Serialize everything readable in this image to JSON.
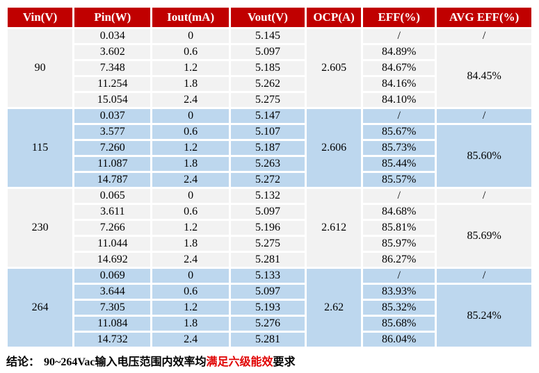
{
  "header": {
    "columns": [
      "Vin(V)",
      "Pin(W)",
      "Iout(mA)",
      "Vout(V)",
      "OCP(A)",
      "EFF(%)",
      "AVG EFF(%)"
    ]
  },
  "groups": [
    {
      "vin": "90",
      "ocp": "2.605",
      "avg_eff_first": "/",
      "avg_eff": "84.45%",
      "rows": [
        {
          "pin": "0.034",
          "iout": "0",
          "vout": "5.145",
          "eff": "/"
        },
        {
          "pin": "3.602",
          "iout": "0.6",
          "vout": "5.097",
          "eff": "84.89%"
        },
        {
          "pin": "7.348",
          "iout": "1.2",
          "vout": "5.185",
          "eff": "84.67%"
        },
        {
          "pin": "11.254",
          "iout": "1.8",
          "vout": "5.262",
          "eff": "84.16%"
        },
        {
          "pin": "15.054",
          "iout": "2.4",
          "vout": "5.275",
          "eff": "84.10%"
        }
      ]
    },
    {
      "vin": "115",
      "ocp": "2.606",
      "avg_eff_first": "/",
      "avg_eff": "85.60%",
      "rows": [
        {
          "pin": "0.037",
          "iout": "0",
          "vout": "5.147",
          "eff": "/"
        },
        {
          "pin": "3.577",
          "iout": "0.6",
          "vout": "5.107",
          "eff": "85.67%"
        },
        {
          "pin": "7.260",
          "iout": "1.2",
          "vout": "5.187",
          "eff": "85.73%"
        },
        {
          "pin": "11.087",
          "iout": "1.8",
          "vout": "5.263",
          "eff": "85.44%"
        },
        {
          "pin": "14.787",
          "iout": "2.4",
          "vout": "5.272",
          "eff": "85.57%"
        }
      ]
    },
    {
      "vin": "230",
      "ocp": "2.612",
      "avg_eff_first": "/",
      "avg_eff": "85.69%",
      "rows": [
        {
          "pin": "0.065",
          "iout": "0",
          "vout": "5.132",
          "eff": "/"
        },
        {
          "pin": "3.611",
          "iout": "0.6",
          "vout": "5.097",
          "eff": "84.68%"
        },
        {
          "pin": "7.266",
          "iout": "1.2",
          "vout": "5.196",
          "eff": "85.81%"
        },
        {
          "pin": "11.044",
          "iout": "1.8",
          "vout": "5.275",
          "eff": "85.97%"
        },
        {
          "pin": "14.692",
          "iout": "2.4",
          "vout": "5.281",
          "eff": "86.27%"
        }
      ]
    },
    {
      "vin": "264",
      "ocp": "2.62",
      "avg_eff_first": "/",
      "avg_eff": "85.24%",
      "rows": [
        {
          "pin": "0.069",
          "iout": "0",
          "vout": "5.133",
          "eff": "/"
        },
        {
          "pin": "3.644",
          "iout": "0.6",
          "vout": "5.097",
          "eff": "83.93%"
        },
        {
          "pin": "7.305",
          "iout": "1.2",
          "vout": "5.193",
          "eff": "85.32%"
        },
        {
          "pin": "11.084",
          "iout": "1.8",
          "vout": "5.276",
          "eff": "85.68%"
        },
        {
          "pin": "14.732",
          "iout": "2.4",
          "vout": "5.281",
          "eff": "86.04%"
        }
      ]
    }
  ],
  "conclusion": {
    "label": "结论：",
    "text_before": "90~264Vac输入电压范围内效率均",
    "highlight": "满足六级能效",
    "text_after": "要求"
  },
  "colors": {
    "header_bg": "#C00000",
    "group_gray": "#F2F2F2",
    "group_blue": "#BDD7EE",
    "highlight_red": "#E00000"
  }
}
